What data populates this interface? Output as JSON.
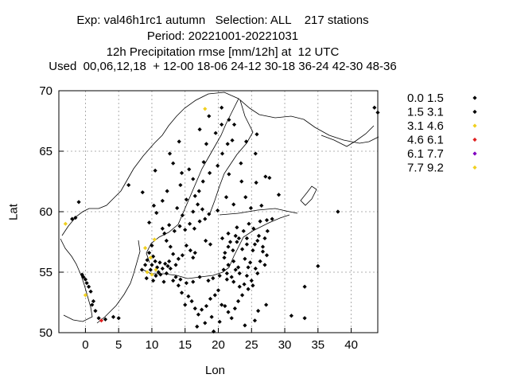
{
  "header": {
    "line1": "Exp: val46h1rc1 autumn   Selection: ALL    217 stations",
    "line2": "Period: 20221001-20221031",
    "line3": "12h Precipitation rmse [mm/12h] at  12 UTC",
    "line4": "Used  00,06,12,18  + 12-00 18-06 24-12 30-18 36-24 42-30 48-36"
  },
  "chart_data": {
    "type": "scatter",
    "title": "12h Precipitation rmse [mm/12h] at  12 UTC",
    "xlabel": "Lon",
    "ylabel": "Lat",
    "xlim": [
      -4,
      44
    ],
    "ylim": [
      50,
      70
    ],
    "xticks": [
      0,
      5,
      10,
      15,
      20,
      25,
      30,
      35,
      40
    ],
    "yticks": [
      50,
      55,
      60,
      65,
      70
    ],
    "grid": true,
    "legend_position": "right",
    "legend": [
      {
        "label": "0.0 1.5",
        "color": "#000000"
      },
      {
        "label": "1.5 3.1",
        "color": "#000000"
      },
      {
        "label": "3.1 4.6",
        "color": "#f0d020"
      },
      {
        "label": "4.6 6.1",
        "color": "#e02020"
      },
      {
        "label": "6.1 7.7",
        "color": "#8000c0"
      },
      {
        "label": "7.7 9.2",
        "color": "#f0d020"
      }
    ],
    "series": [
      {
        "class": "0.0 1.5",
        "color": "#000000",
        "points": [
          [
            -1,
            60.8
          ],
          [
            -1.5,
            59.5
          ],
          [
            -2,
            59.4
          ],
          [
            1,
            52.3
          ],
          [
            1.2,
            52.6
          ],
          [
            1.5,
            51.8
          ],
          [
            2,
            51.2
          ],
          [
            3,
            51.1
          ],
          [
            4.2,
            51.3
          ],
          [
            5,
            51.2
          ],
          [
            -0.5,
            54.8
          ],
          [
            0,
            54.4
          ],
          [
            0.2,
            54.1
          ],
          [
            0.5,
            53.8
          ],
          [
            0.8,
            53.4
          ],
          [
            -0.3,
            54.6
          ],
          [
            8.5,
            55.2
          ],
          [
            9,
            55.6
          ],
          [
            9.3,
            56.0
          ],
          [
            9.6,
            56.6
          ],
          [
            10,
            57.2
          ],
          [
            10.2,
            56.3
          ],
          [
            10.5,
            55.9
          ],
          [
            10.8,
            55.4
          ],
          [
            11.2,
            55.8
          ],
          [
            11.6,
            55.3
          ],
          [
            12,
            55.7
          ],
          [
            12.4,
            55.5
          ],
          [
            12.6,
            55.9
          ],
          [
            11,
            55.0
          ],
          [
            12.2,
            54.9
          ],
          [
            12.8,
            55.3
          ],
          [
            10,
            55.6
          ],
          [
            9.8,
            55.2
          ],
          [
            11.3,
            54.8
          ],
          [
            10.6,
            54.7
          ],
          [
            9.2,
            54.5
          ],
          [
            10.2,
            54.3
          ],
          [
            11.8,
            54.2
          ],
          [
            13.2,
            54.3
          ],
          [
            13.6,
            54.6
          ],
          [
            14,
            53.9
          ],
          [
            14.5,
            53.3
          ],
          [
            15.5,
            53.0
          ],
          [
            16,
            52.6
          ],
          [
            15,
            52.3
          ],
          [
            16.5,
            52.0
          ],
          [
            17,
            51.5
          ],
          [
            17.5,
            51.9
          ],
          [
            18.2,
            52.2
          ],
          [
            18.8,
            52.8
          ],
          [
            19.5,
            53.1
          ],
          [
            20,
            53.5
          ],
          [
            20.5,
            52.3
          ],
          [
            21,
            52.2
          ],
          [
            21.5,
            51.7
          ],
          [
            22,
            51.2
          ],
          [
            22.5,
            52.0
          ],
          [
            23,
            52.6
          ],
          [
            19,
            51.3
          ],
          [
            18,
            50.8
          ],
          [
            16.8,
            50.5
          ],
          [
            19.3,
            50.1
          ],
          [
            20.2,
            50.9
          ],
          [
            24,
            50.6
          ],
          [
            25.5,
            51.0
          ],
          [
            26,
            51.8
          ],
          [
            27.2,
            52.3
          ],
          [
            23.6,
            53.1
          ],
          [
            24.5,
            53.6
          ],
          [
            25.2,
            53.9
          ],
          [
            23.2,
            53.8
          ],
          [
            22.3,
            54.2
          ],
          [
            21.3,
            54.4
          ],
          [
            20.2,
            54.7
          ],
          [
            19.2,
            54.5
          ],
          [
            18.5,
            54.3
          ],
          [
            17.2,
            54.6
          ],
          [
            16.2,
            54.2
          ],
          [
            15.2,
            54.1
          ],
          [
            14.3,
            54.4
          ],
          [
            16.5,
            56.6
          ],
          [
            16.2,
            56.2
          ],
          [
            15.8,
            56.8
          ],
          [
            15.2,
            57.2
          ],
          [
            14.6,
            56.4
          ],
          [
            14,
            56.1
          ],
          [
            13.6,
            55.6
          ],
          [
            13.2,
            56.5
          ],
          [
            12.8,
            57.1
          ],
          [
            12.2,
            57.6
          ],
          [
            11.9,
            58.2
          ],
          [
            11.6,
            58.6
          ],
          [
            12.6,
            58.9
          ],
          [
            13.4,
            58.4
          ],
          [
            14.2,
            58.8
          ],
          [
            15,
            58.5
          ],
          [
            15.7,
            59.0
          ],
          [
            16.4,
            58.6
          ],
          [
            17.2,
            59.2
          ],
          [
            18,
            59.4
          ],
          [
            18.6,
            59.8
          ],
          [
            17.6,
            60.2
          ],
          [
            16.9,
            60.6
          ],
          [
            16.2,
            60.0
          ],
          [
            14.6,
            59.7
          ],
          [
            13.8,
            60.3
          ],
          [
            15.2,
            61.0
          ],
          [
            16.5,
            61.3
          ],
          [
            17.1,
            61.7
          ],
          [
            14.3,
            62.2
          ],
          [
            16.2,
            62.7
          ],
          [
            17.7,
            62.5
          ],
          [
            18.7,
            63.2
          ],
          [
            19.9,
            63.8
          ],
          [
            15.6,
            63.5
          ],
          [
            14.5,
            63.2
          ],
          [
            17.8,
            64.1
          ],
          [
            20.6,
            64.8
          ],
          [
            21.4,
            65.6
          ],
          [
            22.1,
            65.9
          ],
          [
            18.2,
            65.6
          ],
          [
            17.2,
            66.8
          ],
          [
            19.6,
            66.5
          ],
          [
            20.5,
            67.2
          ],
          [
            21.6,
            67.6
          ],
          [
            18.6,
            67.9
          ],
          [
            22.4,
            67.2
          ],
          [
            12.7,
            64.8
          ],
          [
            14.1,
            65.8
          ],
          [
            12.3,
            61.7
          ],
          [
            11.6,
            60.9
          ],
          [
            10.7,
            59.9
          ],
          [
            9.6,
            59.1
          ],
          [
            10.3,
            60.5
          ],
          [
            8.6,
            61.6
          ],
          [
            6.5,
            62.2
          ],
          [
            10.5,
            63.4
          ],
          [
            13.2,
            64.0
          ],
          [
            20.5,
            68.6
          ],
          [
            23.4,
            64.0
          ],
          [
            24.2,
            65.8
          ],
          [
            25.6,
            64.8
          ],
          [
            25.8,
            66.4
          ],
          [
            27.1,
            62.9
          ],
          [
            22.3,
            60.6
          ],
          [
            24.9,
            60.3
          ],
          [
            26.5,
            60.5
          ],
          [
            29.1,
            61.4
          ],
          [
            27.7,
            62.8
          ],
          [
            25.7,
            62.4
          ],
          [
            24.1,
            61.2
          ],
          [
            23.5,
            62.5
          ],
          [
            21.6,
            63.1
          ],
          [
            21.2,
            61.2
          ],
          [
            19.9,
            60.1
          ],
          [
            18.1,
            57.6
          ],
          [
            18.8,
            57.3
          ],
          [
            20.6,
            57.8
          ],
          [
            21.5,
            58.2
          ],
          [
            22.8,
            58.7
          ],
          [
            23.8,
            58.4
          ],
          [
            24.6,
            59.0
          ],
          [
            25.3,
            58.6
          ],
          [
            26.3,
            59.2
          ],
          [
            27.3,
            59.3
          ],
          [
            28.1,
            59.4
          ],
          [
            21,
            56.6
          ],
          [
            21.5,
            57.1
          ],
          [
            22.2,
            56.8
          ],
          [
            22.8,
            57.5
          ],
          [
            23.6,
            56.9
          ],
          [
            24.3,
            57.3
          ],
          [
            25.2,
            56.8
          ],
          [
            25.9,
            57.6
          ],
          [
            26.7,
            57.1
          ],
          [
            27.3,
            56.4
          ],
          [
            24.0,
            56.1
          ],
          [
            24.8,
            55.8
          ],
          [
            25.6,
            55.3
          ],
          [
            26.3,
            55.9
          ],
          [
            27.0,
            55.6
          ],
          [
            23.0,
            55.4
          ],
          [
            22.3,
            55.9
          ],
          [
            21.5,
            55.6
          ],
          [
            23.2,
            54.9
          ],
          [
            24.3,
            54.7
          ],
          [
            25.0,
            54.3
          ],
          [
            23.9,
            54.0
          ],
          [
            21.3,
            54.9
          ],
          [
            22.6,
            55.2
          ],
          [
            20.9,
            56.2
          ],
          [
            21.8,
            57.5
          ],
          [
            22.6,
            58.0
          ],
          [
            26.1,
            58.0
          ],
          [
            27.0,
            57.8
          ],
          [
            27.4,
            58.4
          ],
          [
            20.8,
            55.2
          ],
          [
            22.0,
            54.6
          ],
          [
            24.5,
            55.4
          ],
          [
            25.9,
            54.9
          ],
          [
            26.7,
            56.7
          ],
          [
            25.5,
            57.3
          ],
          [
            23.1,
            57.8
          ],
          [
            24.3,
            57.8
          ],
          [
            38,
            60
          ],
          [
            35,
            55.5
          ],
          [
            33,
            53.8
          ],
          [
            33,
            51.2
          ],
          [
            31,
            51.4
          ],
          [
            43.5,
            68.6
          ],
          [
            44,
            68.2
          ]
        ]
      },
      {
        "class": "3.1 4.6",
        "color": "#f0d020",
        "points": [
          [
            -3,
            59
          ],
          [
            0,
            53.1
          ],
          [
            9.0,
            57.0
          ],
          [
            10.4,
            57.7
          ],
          [
            9.8,
            56.2
          ],
          [
            9.3,
            55.0
          ],
          [
            10.0,
            54.8
          ],
          [
            10.6,
            55.2
          ],
          [
            18,
            68.5
          ]
        ]
      },
      {
        "class": "4.6 6.1",
        "color": "#e02020",
        "points": [
          [
            2.4,
            51.0
          ]
        ]
      }
    ]
  }
}
